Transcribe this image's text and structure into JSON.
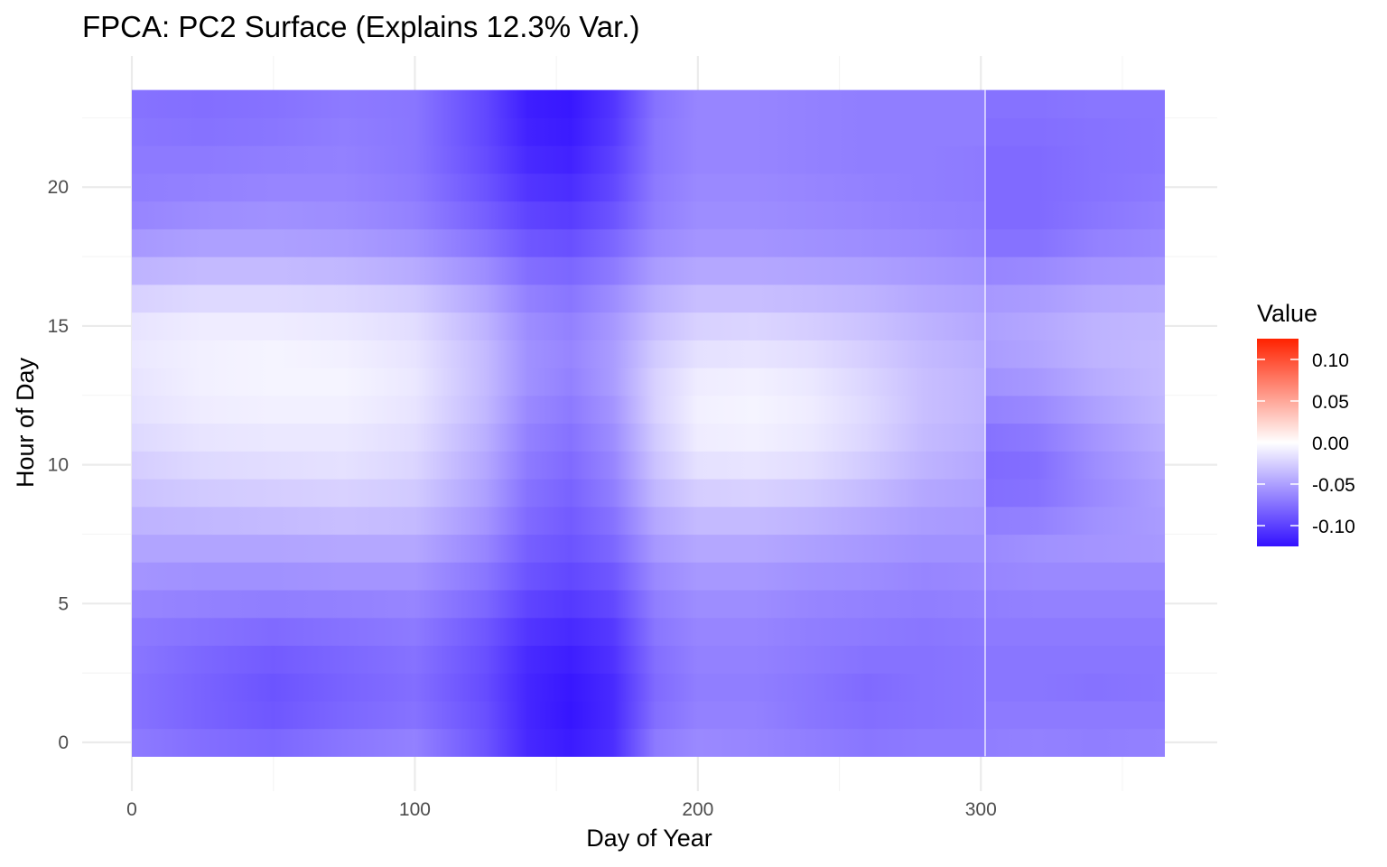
{
  "chart_data": {
    "type": "heatmap",
    "title": "FPCA: PC2 Surface (Explains 12.3% Var.)",
    "xlabel": "Day of Year",
    "ylabel": "Hour of Day",
    "xlim": [
      0,
      365
    ],
    "ylim": [
      0,
      23
    ],
    "x_ticks": [
      0,
      100,
      200,
      300
    ],
    "x_tick_labels": [
      "0",
      "100",
      "200",
      "300"
    ],
    "y_ticks": [
      0,
      5,
      10,
      15,
      20
    ],
    "y_tick_labels": [
      "0",
      "5",
      "10",
      "15",
      "20"
    ],
    "grid": true,
    "day_sample_points": [
      1,
      25,
      50,
      75,
      100,
      125,
      140,
      155,
      170,
      185,
      200,
      220,
      240,
      260,
      280,
      301,
      302,
      320,
      340,
      365
    ],
    "hour_rows": [
      0,
      1,
      2,
      3,
      4,
      5,
      6,
      7,
      8,
      9,
      10,
      11,
      12,
      13,
      14,
      15,
      16,
      17,
      18,
      19,
      20,
      21,
      22,
      23
    ],
    "values": [
      [
        -0.07,
        -0.076,
        -0.08,
        -0.072,
        -0.066,
        -0.09,
        -0.113,
        -0.12,
        -0.11,
        -0.07,
        -0.062,
        -0.064,
        -0.068,
        -0.072,
        -0.07,
        -0.07,
        -0.068,
        -0.066,
        -0.068,
        -0.066
      ],
      [
        -0.074,
        -0.082,
        -0.088,
        -0.08,
        -0.074,
        -0.092,
        -0.114,
        -0.123,
        -0.112,
        -0.076,
        -0.066,
        -0.066,
        -0.072,
        -0.076,
        -0.074,
        -0.072,
        -0.07,
        -0.07,
        -0.07,
        -0.07
      ],
      [
        -0.074,
        -0.082,
        -0.09,
        -0.082,
        -0.076,
        -0.094,
        -0.114,
        -0.122,
        -0.112,
        -0.078,
        -0.068,
        -0.068,
        -0.072,
        -0.078,
        -0.074,
        -0.072,
        -0.072,
        -0.072,
        -0.074,
        -0.072
      ],
      [
        -0.072,
        -0.08,
        -0.086,
        -0.08,
        -0.074,
        -0.092,
        -0.112,
        -0.118,
        -0.108,
        -0.076,
        -0.066,
        -0.066,
        -0.07,
        -0.074,
        -0.074,
        -0.072,
        -0.072,
        -0.072,
        -0.072,
        -0.072
      ],
      [
        -0.07,
        -0.074,
        -0.078,
        -0.074,
        -0.07,
        -0.088,
        -0.106,
        -0.112,
        -0.104,
        -0.072,
        -0.064,
        -0.064,
        -0.068,
        -0.07,
        -0.072,
        -0.07,
        -0.07,
        -0.07,
        -0.07,
        -0.07
      ],
      [
        -0.064,
        -0.066,
        -0.068,
        -0.066,
        -0.064,
        -0.08,
        -0.098,
        -0.104,
        -0.096,
        -0.068,
        -0.06,
        -0.06,
        -0.064,
        -0.066,
        -0.068,
        -0.066,
        -0.068,
        -0.066,
        -0.066,
        -0.066
      ],
      [
        -0.056,
        -0.058,
        -0.058,
        -0.056,
        -0.056,
        -0.072,
        -0.09,
        -0.096,
        -0.088,
        -0.062,
        -0.054,
        -0.054,
        -0.058,
        -0.06,
        -0.064,
        -0.062,
        -0.064,
        -0.062,
        -0.062,
        -0.062
      ],
      [
        -0.048,
        -0.048,
        -0.048,
        -0.046,
        -0.046,
        -0.064,
        -0.084,
        -0.09,
        -0.08,
        -0.054,
        -0.046,
        -0.046,
        -0.05,
        -0.054,
        -0.058,
        -0.058,
        -0.062,
        -0.058,
        -0.056,
        -0.054
      ],
      [
        -0.04,
        -0.038,
        -0.036,
        -0.034,
        -0.036,
        -0.056,
        -0.078,
        -0.086,
        -0.074,
        -0.046,
        -0.036,
        -0.036,
        -0.04,
        -0.046,
        -0.052,
        -0.054,
        -0.068,
        -0.066,
        -0.058,
        -0.052
      ],
      [
        -0.032,
        -0.028,
        -0.026,
        -0.024,
        -0.028,
        -0.05,
        -0.074,
        -0.082,
        -0.068,
        -0.038,
        -0.026,
        -0.024,
        -0.028,
        -0.036,
        -0.046,
        -0.05,
        -0.076,
        -0.074,
        -0.062,
        -0.05
      ],
      [
        -0.026,
        -0.02,
        -0.018,
        -0.016,
        -0.022,
        -0.046,
        -0.07,
        -0.078,
        -0.064,
        -0.032,
        -0.016,
        -0.014,
        -0.018,
        -0.028,
        -0.04,
        -0.046,
        -0.078,
        -0.076,
        -0.06,
        -0.046
      ],
      [
        -0.02,
        -0.014,
        -0.012,
        -0.012,
        -0.018,
        -0.042,
        -0.066,
        -0.074,
        -0.06,
        -0.028,
        -0.01,
        -0.008,
        -0.012,
        -0.022,
        -0.036,
        -0.042,
        -0.074,
        -0.07,
        -0.056,
        -0.042
      ],
      [
        -0.016,
        -0.01,
        -0.008,
        -0.008,
        -0.014,
        -0.038,
        -0.062,
        -0.07,
        -0.056,
        -0.024,
        -0.008,
        -0.006,
        -0.01,
        -0.02,
        -0.034,
        -0.04,
        -0.066,
        -0.062,
        -0.05,
        -0.038
      ],
      [
        -0.014,
        -0.008,
        -0.006,
        -0.006,
        -0.012,
        -0.036,
        -0.058,
        -0.066,
        -0.052,
        -0.024,
        -0.01,
        -0.008,
        -0.012,
        -0.022,
        -0.034,
        -0.04,
        -0.058,
        -0.054,
        -0.044,
        -0.036
      ],
      [
        -0.012,
        -0.008,
        -0.006,
        -0.008,
        -0.014,
        -0.036,
        -0.058,
        -0.064,
        -0.052,
        -0.028,
        -0.016,
        -0.014,
        -0.018,
        -0.026,
        -0.036,
        -0.042,
        -0.052,
        -0.048,
        -0.04,
        -0.036
      ],
      [
        -0.014,
        -0.01,
        -0.01,
        -0.012,
        -0.018,
        -0.04,
        -0.06,
        -0.066,
        -0.054,
        -0.034,
        -0.024,
        -0.022,
        -0.026,
        -0.032,
        -0.04,
        -0.046,
        -0.05,
        -0.046,
        -0.04,
        -0.038
      ],
      [
        -0.024,
        -0.02,
        -0.02,
        -0.022,
        -0.028,
        -0.048,
        -0.066,
        -0.072,
        -0.06,
        -0.042,
        -0.034,
        -0.034,
        -0.036,
        -0.04,
        -0.046,
        -0.05,
        -0.054,
        -0.052,
        -0.046,
        -0.044
      ],
      [
        -0.04,
        -0.036,
        -0.036,
        -0.038,
        -0.044,
        -0.06,
        -0.076,
        -0.08,
        -0.07,
        -0.052,
        -0.046,
        -0.046,
        -0.048,
        -0.05,
        -0.054,
        -0.058,
        -0.064,
        -0.062,
        -0.056,
        -0.054
      ],
      [
        -0.054,
        -0.05,
        -0.05,
        -0.052,
        -0.058,
        -0.074,
        -0.088,
        -0.092,
        -0.08,
        -0.062,
        -0.056,
        -0.056,
        -0.058,
        -0.06,
        -0.062,
        -0.066,
        -0.074,
        -0.074,
        -0.066,
        -0.062
      ],
      [
        -0.064,
        -0.06,
        -0.058,
        -0.06,
        -0.066,
        -0.084,
        -0.098,
        -0.102,
        -0.09,
        -0.068,
        -0.06,
        -0.06,
        -0.062,
        -0.064,
        -0.066,
        -0.068,
        -0.078,
        -0.078,
        -0.072,
        -0.066
      ],
      [
        -0.068,
        -0.066,
        -0.064,
        -0.064,
        -0.07,
        -0.09,
        -0.106,
        -0.11,
        -0.096,
        -0.07,
        -0.062,
        -0.062,
        -0.064,
        -0.066,
        -0.068,
        -0.07,
        -0.078,
        -0.078,
        -0.074,
        -0.07
      ],
      [
        -0.07,
        -0.07,
        -0.068,
        -0.066,
        -0.072,
        -0.094,
        -0.112,
        -0.116,
        -0.1,
        -0.072,
        -0.064,
        -0.064,
        -0.066,
        -0.068,
        -0.068,
        -0.07,
        -0.078,
        -0.078,
        -0.074,
        -0.072
      ],
      [
        -0.072,
        -0.074,
        -0.072,
        -0.068,
        -0.072,
        -0.096,
        -0.116,
        -0.12,
        -0.104,
        -0.072,
        -0.064,
        -0.064,
        -0.066,
        -0.068,
        -0.068,
        -0.068,
        -0.076,
        -0.076,
        -0.074,
        -0.072
      ],
      [
        -0.074,
        -0.076,
        -0.074,
        -0.07,
        -0.072,
        -0.096,
        -0.118,
        -0.122,
        -0.106,
        -0.074,
        -0.064,
        -0.064,
        -0.066,
        -0.068,
        -0.068,
        -0.068,
        -0.074,
        -0.074,
        -0.072,
        -0.072
      ]
    ],
    "legend": {
      "title": "Value",
      "position": "right",
      "ticks": [
        0.1,
        0.05,
        0.0,
        -0.05,
        -0.1
      ],
      "tick_labels": [
        "0.10",
        "0.05",
        "0.00",
        "-0.05",
        "-0.10"
      ],
      "limits": [
        -0.125,
        0.125
      ],
      "low_color": "#3311ff",
      "mid_color": "#ffffff",
      "high_color": "#ff2200"
    }
  }
}
